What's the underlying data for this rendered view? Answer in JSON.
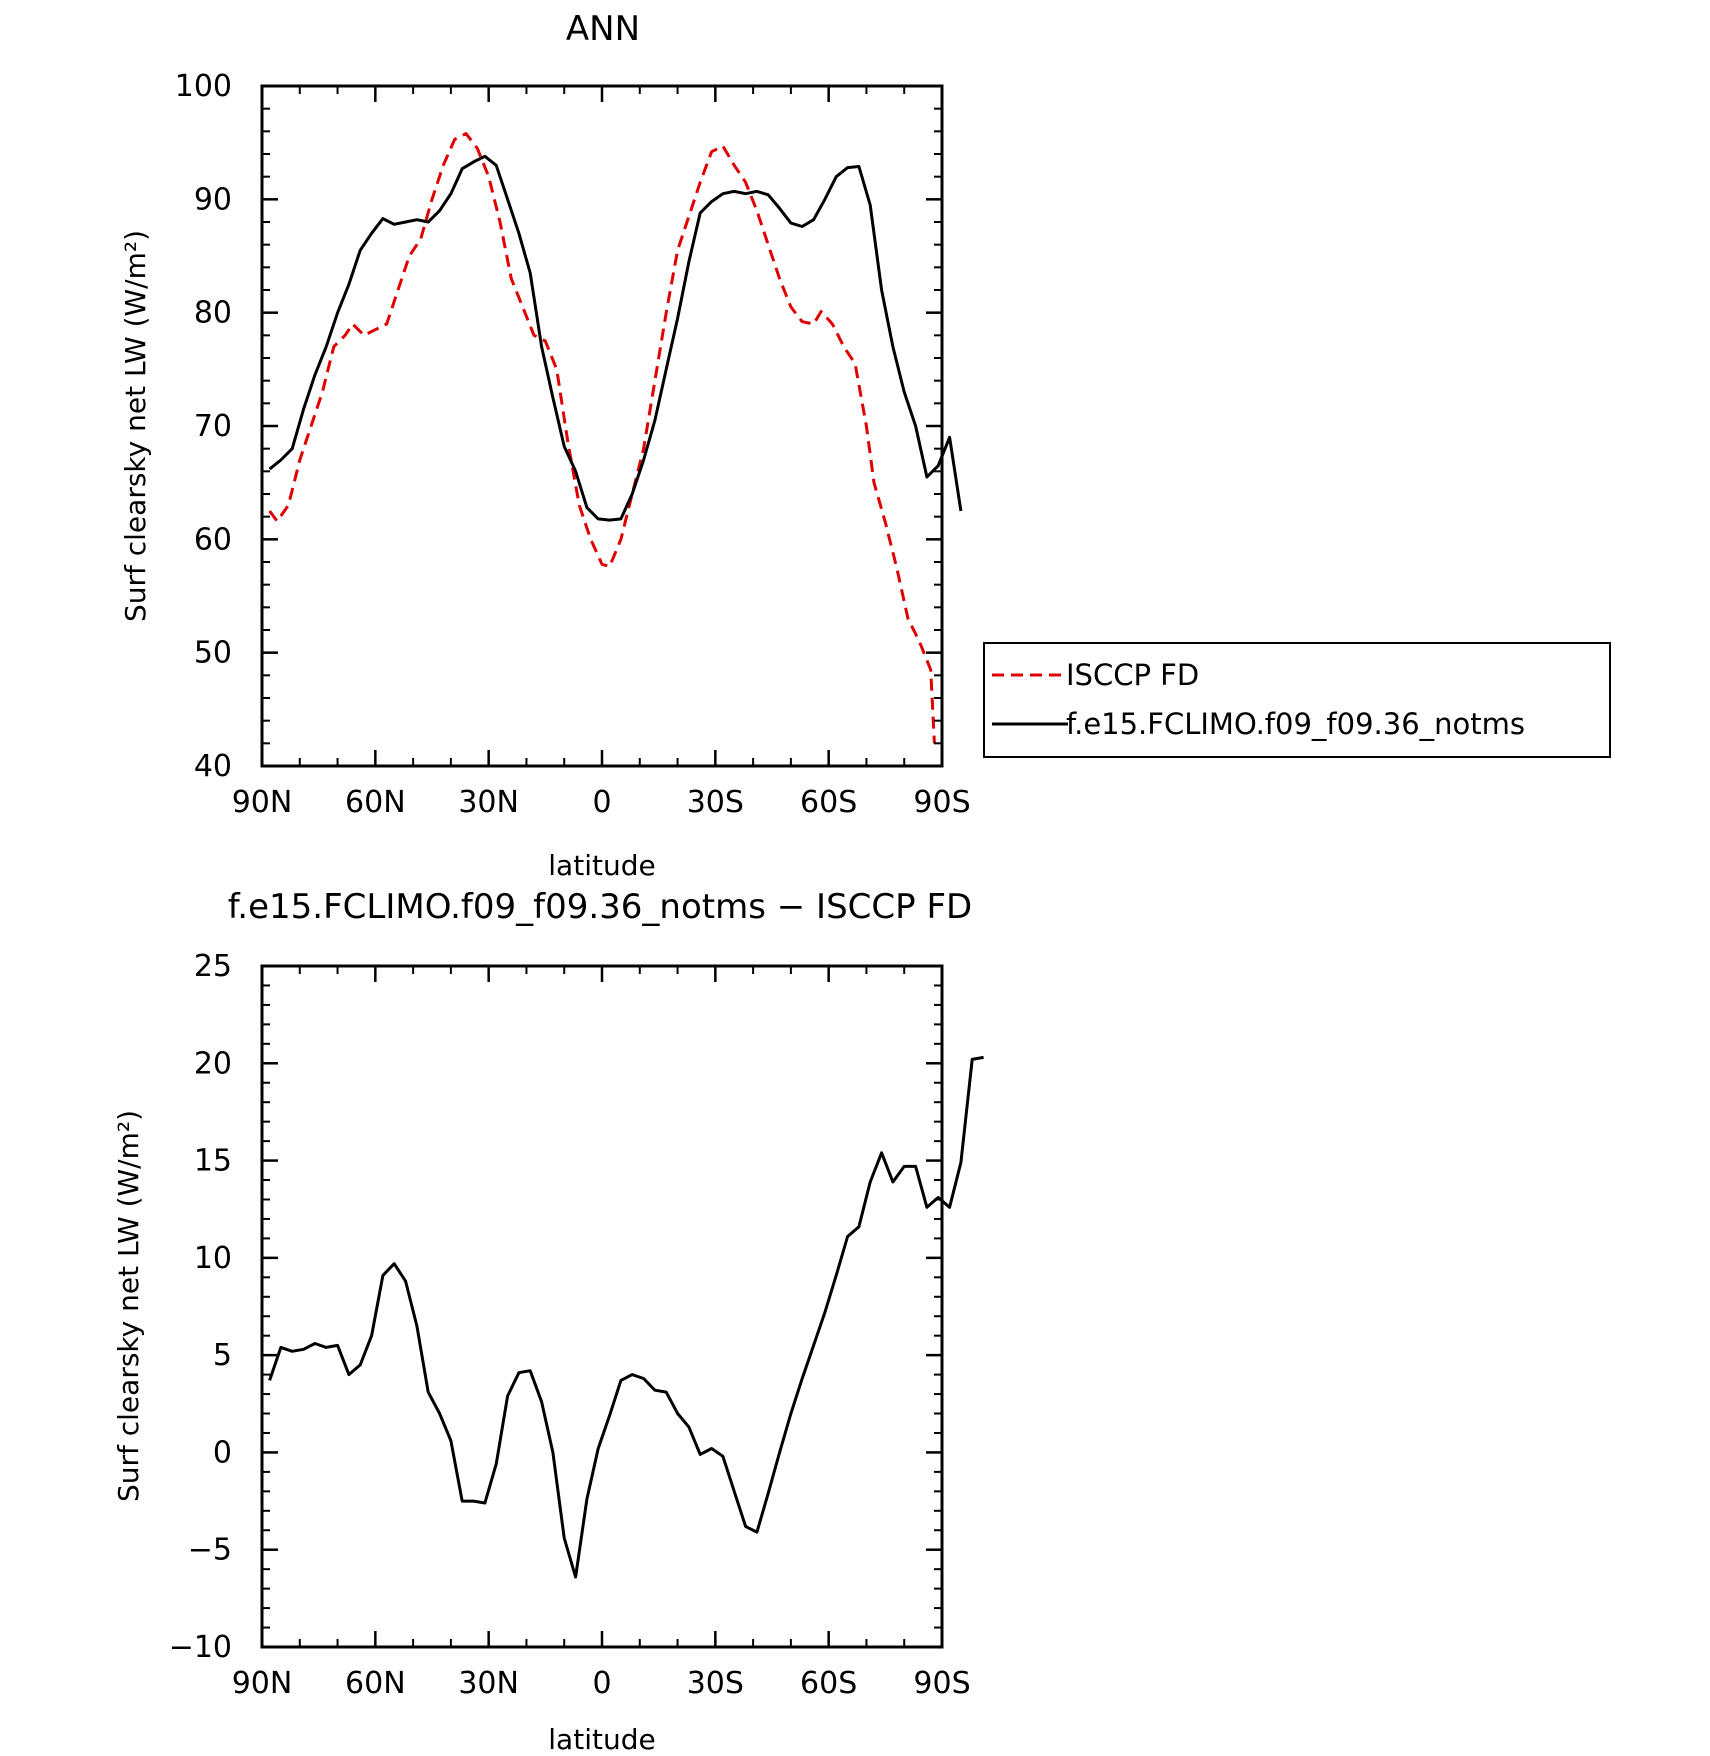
{
  "chart_data": [
    {
      "type": "line",
      "title": "ANN",
      "xlabel": "latitude",
      "ylabel": "Surf clearsky net LW (W/m²)",
      "xlim": [
        -90,
        90
      ],
      "ylim": [
        40,
        100
      ],
      "x_ticks": [
        -90,
        -60,
        -30,
        0,
        30,
        60,
        90
      ],
      "x_tick_labels": [
        "90N",
        "60N",
        "30N",
        "0",
        "30S",
        "60S",
        "90S"
      ],
      "y_ticks": [
        40,
        50,
        60,
        70,
        80,
        90,
        100
      ],
      "y_tick_labels": [
        "40",
        "50",
        "60",
        "70",
        "80",
        "90",
        "100"
      ],
      "legend": "right",
      "series": [
        {
          "name": "ISCCP FD",
          "color": "#e00000",
          "dash": true,
          "points": [
            [
              -88,
              62.5
            ],
            [
              -86,
              61.6
            ],
            [
              -83,
              63.0
            ],
            [
              -80,
              67.0
            ],
            [
              -77,
              70.0
            ],
            [
              -74,
              73.0
            ],
            [
              -71,
              77.0
            ],
            [
              -68,
              78.0
            ],
            [
              -66,
              79.0
            ],
            [
              -63,
              78.0
            ],
            [
              -60,
              78.5
            ],
            [
              -57,
              79.0
            ],
            [
              -54,
              82.0
            ],
            [
              -51,
              85.0
            ],
            [
              -48,
              86.5
            ],
            [
              -45,
              90.0
            ],
            [
              -42,
              93.0
            ],
            [
              -39,
              95.3
            ],
            [
              -36,
              95.8
            ],
            [
              -33,
              94.5
            ],
            [
              -30,
              92.0
            ],
            [
              -27,
              88.0
            ],
            [
              -24,
              83.0
            ],
            [
              -21,
              80.5
            ],
            [
              -18,
              78.0
            ],
            [
              -15,
              77.5
            ],
            [
              -12,
              75.0
            ],
            [
              -9,
              68.5
            ],
            [
              -6,
              63.0
            ],
            [
              -3,
              60.0
            ],
            [
              0,
              57.8
            ],
            [
              2,
              57.6
            ],
            [
              5,
              60.0
            ],
            [
              8,
              64.0
            ],
            [
              11,
              68.0
            ],
            [
              14,
              74.0
            ],
            [
              17,
              80.0
            ],
            [
              20,
              85.5
            ],
            [
              23,
              88.5
            ],
            [
              26,
              91.5
            ],
            [
              29,
              94.2
            ],
            [
              32,
              94.7
            ],
            [
              35,
              93.0
            ],
            [
              38,
              91.5
            ],
            [
              41,
              89.0
            ],
            [
              44,
              86.0
            ],
            [
              47,
              83.0
            ],
            [
              50,
              80.5
            ],
            [
              53,
              79.2
            ],
            [
              56,
              79.0
            ],
            [
              58,
              80.1
            ],
            [
              61,
              79.0
            ],
            [
              64,
              77.0
            ],
            [
              67,
              75.5
            ],
            [
              70,
              70.0
            ],
            [
              72,
              65.0
            ],
            [
              75,
              61.5
            ],
            [
              78,
              57.5
            ],
            [
              81,
              53.0
            ],
            [
              84,
              51.0
            ],
            [
              87,
              48.5
            ],
            [
              88,
              42.0
            ]
          ]
        },
        {
          "name": "f.e15.FCLIMO.f09_f09.36_notms",
          "color": "#000000",
          "dash": false,
          "points": [
            [
              -88,
              66.2
            ],
            [
              -85,
              67.0
            ],
            [
              -82,
              68.0
            ],
            [
              -79,
              71.5
            ],
            [
              -76,
              74.5
            ],
            [
              -73,
              77.0
            ],
            [
              -70,
              80.0
            ],
            [
              -67,
              82.5
            ],
            [
              -64,
              85.5
            ],
            [
              -61,
              87.0
            ],
            [
              -58,
              88.3
            ],
            [
              -55,
              87.8
            ],
            [
              -52,
              88.0
            ],
            [
              -49,
              88.2
            ],
            [
              -46,
              88.0
            ],
            [
              -43,
              89.0
            ],
            [
              -40,
              90.5
            ],
            [
              -37,
              92.7
            ],
            [
              -34,
              93.3
            ],
            [
              -31,
              93.8
            ],
            [
              -28,
              93.0
            ],
            [
              -25,
              90.0
            ],
            [
              -22,
              87.0
            ],
            [
              -19,
              83.5
            ],
            [
              -16,
              77.0
            ],
            [
              -13,
              72.5
            ],
            [
              -10,
              68.2
            ],
            [
              -7,
              66.0
            ],
            [
              -4,
              62.8
            ],
            [
              -1,
              61.8
            ],
            [
              2,
              61.7
            ],
            [
              5,
              61.8
            ],
            [
              8,
              64.0
            ],
            [
              11,
              67.0
            ],
            [
              14,
              70.5
            ],
            [
              17,
              75.0
            ],
            [
              20,
              79.5
            ],
            [
              23,
              84.5
            ],
            [
              26,
              88.8
            ],
            [
              29,
              89.8
            ],
            [
              32,
              90.5
            ],
            [
              35,
              90.7
            ],
            [
              38,
              90.5
            ],
            [
              41,
              90.7
            ],
            [
              44,
              90.4
            ],
            [
              47,
              89.2
            ],
            [
              50,
              87.9
            ],
            [
              53,
              87.6
            ],
            [
              56,
              88.2
            ],
            [
              59,
              90.0
            ],
            [
              62,
              92.0
            ],
            [
              65,
              92.8
            ],
            [
              68,
              92.9
            ],
            [
              71,
              89.5
            ],
            [
              74,
              82.0
            ],
            [
              77,
              77.0
            ],
            [
              80,
              73.0
            ],
            [
              83,
              70.0
            ],
            [
              86,
              65.5
            ],
            [
              89,
              66.5
            ],
            [
              92,
              69.0
            ],
            [
              95,
              62.5
            ]
          ]
        }
      ]
    },
    {
      "type": "line",
      "title": "f.e15.FCLIMO.f09_f09.36_notms − ISCCP FD",
      "xlabel": "latitude",
      "ylabel": "Surf clearsky net LW (W/m²)",
      "xlim": [
        -90,
        90
      ],
      "ylim": [
        -10,
        25
      ],
      "x_ticks": [
        -90,
        -60,
        -30,
        0,
        30,
        60,
        90
      ],
      "x_tick_labels": [
        "90N",
        "60N",
        "30N",
        "0",
        "30S",
        "60S",
        "90S"
      ],
      "y_ticks": [
        -10,
        -5,
        0,
        5,
        10,
        15,
        20,
        25
      ],
      "y_tick_labels": [
        "−10",
        "−5",
        "0",
        "5",
        "10",
        "15",
        "20",
        "25"
      ],
      "series": [
        {
          "color": "#000000",
          "dash": false,
          "points": [
            [
              -88,
              3.7
            ],
            [
              -85,
              5.4
            ],
            [
              -82,
              5.2
            ],
            [
              -79,
              5.3
            ],
            [
              -76,
              5.6
            ],
            [
              -73,
              5.4
            ],
            [
              -70,
              5.5
            ],
            [
              -67,
              4.0
            ],
            [
              -64,
              4.5
            ],
            [
              -61,
              6.0
            ],
            [
              -58,
              9.1
            ],
            [
              -55,
              9.7
            ],
            [
              -52,
              8.8
            ],
            [
              -49,
              6.5
            ],
            [
              -46,
              3.1
            ],
            [
              -43,
              2.0
            ],
            [
              -40,
              0.6
            ],
            [
              -37,
              -2.5
            ],
            [
              -34,
              -2.5
            ],
            [
              -31,
              -2.6
            ],
            [
              -28,
              -0.6
            ],
            [
              -25,
              2.9
            ],
            [
              -22,
              4.1
            ],
            [
              -19,
              4.2
            ],
            [
              -16,
              2.6
            ],
            [
              -13,
              0.0
            ],
            [
              -10,
              -4.4
            ],
            [
              -7,
              -6.4
            ],
            [
              -4,
              -2.4
            ],
            [
              -1,
              0.2
            ],
            [
              2,
              1.9
            ],
            [
              5,
              3.7
            ],
            [
              8,
              4.0
            ],
            [
              11,
              3.8
            ],
            [
              14,
              3.2
            ],
            [
              17,
              3.1
            ],
            [
              20,
              2.0
            ],
            [
              23,
              1.3
            ],
            [
              26,
              -0.1
            ],
            [
              29,
              0.2
            ],
            [
              32,
              -0.2
            ],
            [
              35,
              -2.0
            ],
            [
              38,
              -3.8
            ],
            [
              41,
              -4.1
            ],
            [
              44,
              -2.1
            ],
            [
              47,
              0.0
            ],
            [
              50,
              2.0
            ],
            [
              53,
              3.8
            ],
            [
              56,
              5.5
            ],
            [
              59,
              7.2
            ],
            [
              62,
              9.1
            ],
            [
              65,
              11.1
            ],
            [
              68,
              11.6
            ],
            [
              71,
              13.9
            ],
            [
              74,
              15.4
            ],
            [
              77,
              13.9
            ],
            [
              80,
              14.7
            ],
            [
              83,
              14.7
            ],
            [
              86,
              12.6
            ],
            [
              89,
              13.1
            ],
            [
              92,
              12.6
            ],
            [
              95,
              14.9
            ],
            [
              98,
              20.2
            ],
            [
              101,
              20.3
            ]
          ]
        }
      ]
    }
  ]
}
